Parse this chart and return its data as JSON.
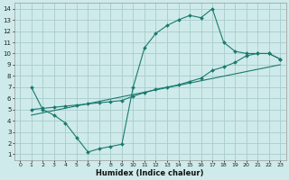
{
  "xlabel": "Humidex (Indice chaleur)",
  "bg_color": "#ceeaea",
  "grid_color": "#aacccc",
  "line_color": "#1a7a6e",
  "xlim": [
    -0.5,
    23.5
  ],
  "ylim": [
    0.5,
    14.5
  ],
  "xticks": [
    0,
    1,
    2,
    3,
    4,
    5,
    6,
    7,
    8,
    9,
    10,
    11,
    12,
    13,
    14,
    15,
    16,
    17,
    18,
    19,
    20,
    21,
    22,
    23
  ],
  "yticks": [
    1,
    2,
    3,
    4,
    5,
    6,
    7,
    8,
    9,
    10,
    11,
    12,
    13,
    14
  ],
  "line1_x": [
    1,
    2,
    3,
    4,
    5,
    6,
    7,
    8,
    9,
    10,
    11,
    12,
    13,
    14,
    15,
    16,
    17,
    18,
    19,
    20,
    21,
    22,
    23
  ],
  "line1_y": [
    7.0,
    5.0,
    4.5,
    3.8,
    2.5,
    1.2,
    1.5,
    1.7,
    1.9,
    7.0,
    10.5,
    11.8,
    12.5,
    13.0,
    13.4,
    13.2,
    14.0,
    11.0,
    10.2,
    10.0,
    10.0,
    10.0,
    9.5
  ],
  "line2_x": [
    1,
    2,
    3,
    4,
    5,
    6,
    7,
    8,
    9,
    10,
    11,
    12,
    13,
    14,
    15,
    16,
    17,
    18,
    19,
    20,
    21,
    22,
    23
  ],
  "line2_y": [
    5.0,
    5.1,
    5.2,
    5.3,
    5.4,
    5.5,
    5.6,
    5.7,
    5.8,
    6.2,
    6.5,
    6.8,
    7.0,
    7.2,
    7.5,
    7.8,
    8.5,
    8.8,
    9.2,
    9.8,
    10.0,
    10.0,
    9.5
  ],
  "line3_x": [
    1,
    23
  ],
  "line3_y": [
    4.5,
    9.0
  ]
}
